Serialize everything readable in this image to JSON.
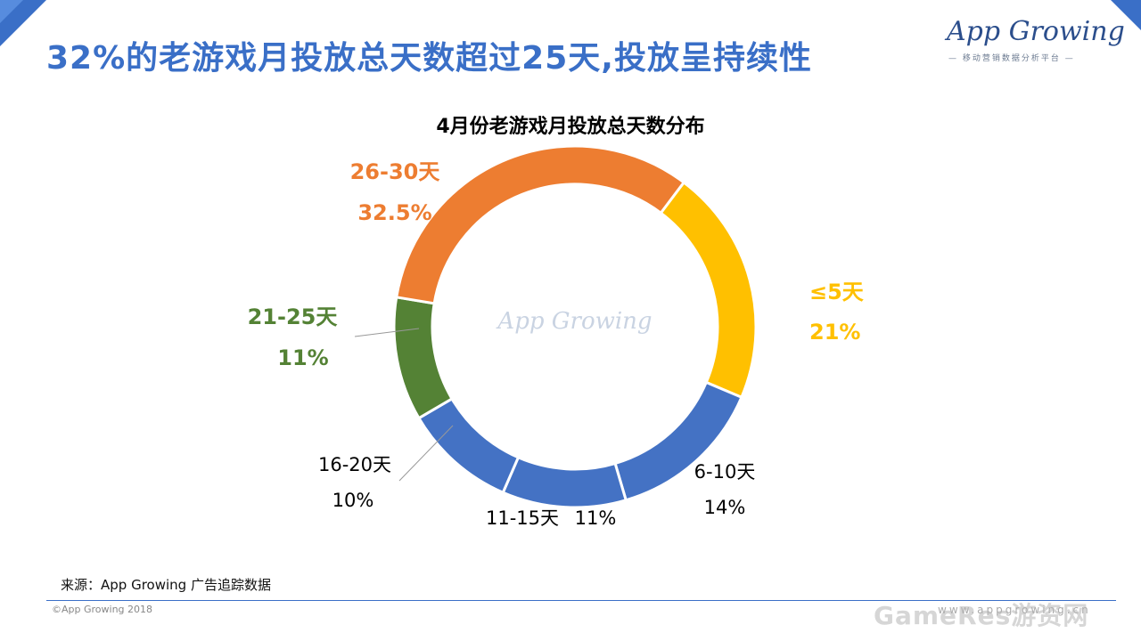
{
  "header": {
    "title": "32%的老游戏月投放总天数超过25天,投放呈持续性",
    "logo_text": "App Growing",
    "logo_tagline": "— 移动营销数据分析平台 —"
  },
  "chart_data": {
    "type": "pie",
    "donut": true,
    "title": "4月份老游戏月投放总天数分布",
    "categories": [
      "≤5天",
      "6-10天",
      "11-15天",
      "16-20天",
      "21-25天",
      "26-30天"
    ],
    "value_labels": [
      "21%",
      "14%",
      "11%",
      "10%",
      "11%",
      "32.5%"
    ],
    "values": [
      21,
      14,
      11,
      10,
      11,
      32.5
    ],
    "colors": [
      "#FFC000",
      "#4472C4",
      "#4472C4",
      "#4472C4",
      "#548235",
      "#ED7D31"
    ],
    "label_colors": [
      "#FFC000",
      "#000000",
      "#000000",
      "#000000",
      "#548235",
      "#ED7D31"
    ],
    "watermark": "App Growing"
  },
  "footer": {
    "source": "来源：App Growing 广告追踪数据",
    "copyright": "©App Growing 2018",
    "website": "www.appgrowing.cn",
    "corner_watermark": "GameRes游资网"
  }
}
